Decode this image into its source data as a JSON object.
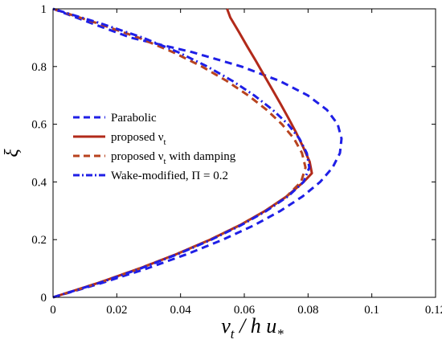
{
  "chart_data": {
    "type": "line",
    "xlabel": "ν_t / h u_*",
    "ylabel": "ξ",
    "xlim": [
      0,
      0.12
    ],
    "ylim": [
      0,
      1
    ],
    "x_ticks": [
      "0",
      "0.02",
      "0.04",
      "0.06",
      "0.08",
      "0.1",
      "0.12"
    ],
    "y_ticks": [
      "0",
      "0.2",
      "0.4",
      "0.6",
      "0.8",
      "1"
    ],
    "grid": false,
    "legend_position": "center-left",
    "series": [
      {
        "name": "Parabolic",
        "color": "#1f1fe6",
        "dash": "dashed",
        "points": [
          [
            0,
            0
          ],
          [
            0.0154,
            0.05
          ],
          [
            0.0295,
            0.1
          ],
          [
            0.0421,
            0.15
          ],
          [
            0.0533,
            0.2
          ],
          [
            0.0631,
            0.25
          ],
          [
            0.0714,
            0.3
          ],
          [
            0.0783,
            0.35
          ],
          [
            0.0838,
            0.4
          ],
          [
            0.0877,
            0.45
          ],
          [
            0.09,
            0.5
          ],
          [
            0.0905,
            0.55
          ],
          [
            0.0893,
            0.6
          ],
          [
            0.0859,
            0.65
          ],
          [
            0.0799,
            0.7
          ],
          [
            0.0711,
            0.75
          ],
          [
            0.0591,
            0.8
          ],
          [
            0.0436,
            0.85
          ],
          [
            0.0244,
            0.9
          ],
          [
            0.0121,
            0.95
          ],
          [
            0,
            1.0
          ]
        ]
      },
      {
        "name": "proposed ν_t",
        "color": "#b22a1a",
        "dash": "solid",
        "points": [
          [
            0,
            0
          ],
          [
            0.0142,
            0.05
          ],
          [
            0.0271,
            0.1
          ],
          [
            0.0388,
            0.15
          ],
          [
            0.0493,
            0.2
          ],
          [
            0.0586,
            0.25
          ],
          [
            0.0666,
            0.3
          ],
          [
            0.0733,
            0.35
          ],
          [
            0.0786,
            0.4
          ],
          [
            0.0812,
            0.43
          ],
          [
            0.0805,
            0.47
          ],
          [
            0.0785,
            0.52
          ],
          [
            0.0763,
            0.57
          ],
          [
            0.0739,
            0.62
          ],
          [
            0.0714,
            0.67
          ],
          [
            0.0688,
            0.72
          ],
          [
            0.0662,
            0.77
          ],
          [
            0.0636,
            0.82
          ],
          [
            0.0609,
            0.87
          ],
          [
            0.0583,
            0.92
          ],
          [
            0.0556,
            0.97
          ],
          [
            0.0546,
            1.0
          ]
        ]
      },
      {
        "name": "proposed ν_t with damping",
        "color": "#b8431f",
        "dash": "dashed",
        "points": [
          [
            0,
            0
          ],
          [
            0.0142,
            0.05
          ],
          [
            0.0271,
            0.1
          ],
          [
            0.0388,
            0.15
          ],
          [
            0.0493,
            0.2
          ],
          [
            0.0586,
            0.25
          ],
          [
            0.0666,
            0.3
          ],
          [
            0.0733,
            0.35
          ],
          [
            0.0778,
            0.4
          ],
          [
            0.0792,
            0.45
          ],
          [
            0.0781,
            0.5
          ],
          [
            0.0756,
            0.55
          ],
          [
            0.0718,
            0.6
          ],
          [
            0.067,
            0.65
          ],
          [
            0.0612,
            0.7
          ],
          [
            0.0545,
            0.75
          ],
          [
            0.0467,
            0.8
          ],
          [
            0.0376,
            0.85
          ],
          [
            0.0269,
            0.9
          ],
          [
            0.0139,
            0.95
          ],
          [
            0,
            1.0
          ]
        ]
      },
      {
        "name": "Wake-modified, Π = 0.2",
        "color": "#1f1fe6",
        "dash": "dashdot",
        "points": [
          [
            0,
            0
          ],
          [
            0.0146,
            0.05
          ],
          [
            0.0275,
            0.1
          ],
          [
            0.0392,
            0.15
          ],
          [
            0.0497,
            0.2
          ],
          [
            0.059,
            0.25
          ],
          [
            0.067,
            0.3
          ],
          [
            0.0737,
            0.35
          ],
          [
            0.0786,
            0.4
          ],
          [
            0.0804,
            0.45
          ],
          [
            0.0796,
            0.5
          ],
          [
            0.0773,
            0.55
          ],
          [
            0.0737,
            0.6
          ],
          [
            0.0689,
            0.65
          ],
          [
            0.0631,
            0.7
          ],
          [
            0.0563,
            0.75
          ],
          [
            0.0484,
            0.8
          ],
          [
            0.0392,
            0.85
          ],
          [
            0.0282,
            0.9
          ],
          [
            0.0148,
            0.95
          ],
          [
            0,
            1.0
          ]
        ]
      }
    ]
  }
}
